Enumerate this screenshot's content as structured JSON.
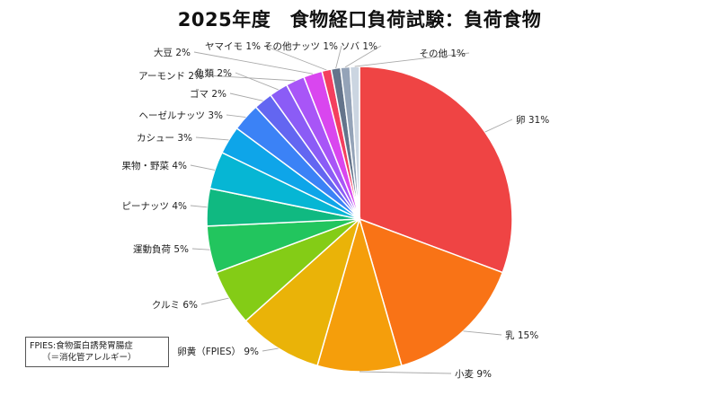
{
  "chart_data": {
    "type": "pie",
    "title": "2025年度　食物経口負荷試験：負荷食物",
    "unit": "%",
    "slices": [
      {
        "label": "卵",
        "value": 31,
        "color": "#ef4444"
      },
      {
        "label": "乳",
        "value": 15,
        "color": "#f97316"
      },
      {
        "label": "小麦",
        "value": 9,
        "color": "#f59e0b"
      },
      {
        "label": "卵黄（FPIES）",
        "value": 9,
        "color": "#eab308"
      },
      {
        "label": "クルミ",
        "value": 6,
        "color": "#84cc16"
      },
      {
        "label": "運動負荷",
        "value": 5,
        "color": "#22c55e"
      },
      {
        "label": "ピーナッツ",
        "value": 4,
        "color": "#10b981"
      },
      {
        "label": "果物・野菜",
        "value": 4,
        "color": "#06b6d4"
      },
      {
        "label": "カシュー",
        "value": 3,
        "color": "#0ea5e9"
      },
      {
        "label": "ヘーゼルナッツ",
        "value": 3,
        "color": "#3b82f6"
      },
      {
        "label": "ゴマ",
        "value": 2,
        "color": "#6366f1"
      },
      {
        "label": "魚類",
        "value": 2,
        "color": "#8b5cf6"
      },
      {
        "label": "アーモンド",
        "value": 2,
        "color": "#a855f7"
      },
      {
        "label": "大豆",
        "value": 2,
        "color": "#d946ef"
      },
      {
        "label": "ヤマイモ",
        "value": 1,
        "color": "#f43f5e"
      },
      {
        "label": "その他ナッツ",
        "value": 1,
        "color": "#64748b"
      },
      {
        "label": "ソバ",
        "value": 1,
        "color": "#94a3b8"
      },
      {
        "label": "その他",
        "value": 1,
        "color": "#cbd5e1"
      }
    ]
  },
  "note": {
    "line1": "FPIES:食物蛋白誘発胃腸症",
    "line2": "（＝消化管アレルギー）"
  }
}
